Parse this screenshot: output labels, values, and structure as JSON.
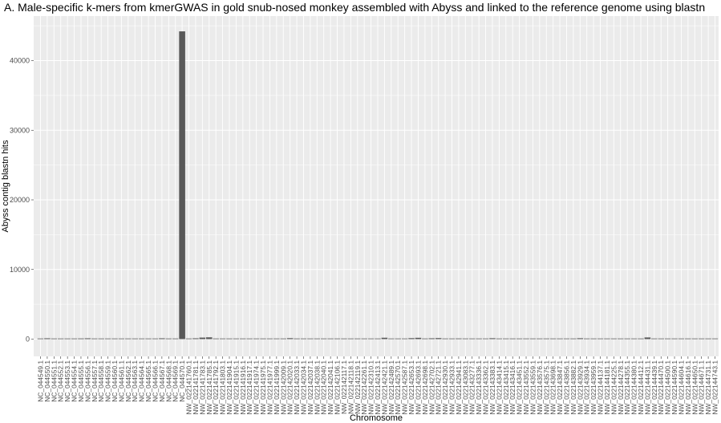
{
  "chart_data": {
    "type": "bar",
    "title": "A. Male-specific k-mers from kmerGWAS in gold snub-nosed monkey assembled with Abyss and linked to the reference genome using blastn",
    "xlabel": "Chromosome",
    "ylabel": "Abyss contig blastn hits",
    "ylim": [
      0,
      45500
    ],
    "yticks": [
      0,
      10000,
      20000,
      30000,
      40000
    ],
    "grid": true,
    "colors": {
      "panel": "#ebebeb",
      "grid": "#ffffff",
      "bar": "#595959",
      "tick_text": "#4d4d4d"
    },
    "categories": [
      "NC_044549.1",
      "NC_044550.1",
      "NC_044551.1",
      "NC_044552.1",
      "NC_044553.1",
      "NC_044554.1",
      "NC_044555.1",
      "NC_044556.1",
      "NC_044557.1",
      "NC_044558.1",
      "NC_044559.1",
      "NC_044560.1",
      "NC_044561.1",
      "NC_044562.1",
      "NC_044563.1",
      "NC_044564.1",
      "NC_044565.1",
      "NC_044566.1",
      "NC_044567.1",
      "NC_044568.1",
      "NC_044569.1",
      "NC_044570.1",
      "NW_022141760.1",
      "NW_022141781.1",
      "NW_022141783.1",
      "NW_022141785.1",
      "NW_022141792.1",
      "NW_022141803.1",
      "NW_022141904.1",
      "NW_022141915.1",
      "NW_022141916.1",
      "NW_022141917.1",
      "NW_022141974.1",
      "NW_022141975.1",
      "NW_022141977.1",
      "NW_022141999.1",
      "NW_022142009.1",
      "NW_022142020.1",
      "NW_022142033.1",
      "NW_022142034.1",
      "NW_022142037.1",
      "NW_022142038.1",
      "NW_022142040.1",
      "NW_022142041.1",
      "NW_022142106.1",
      "NW_022142117.1",
      "NW_022142118.1",
      "NW_022142119.1",
      "NW_022142261.1",
      "NW_022142310.1",
      "NW_022142413.1",
      "NW_022142421.1",
      "NW_022142489.1",
      "NW_022142570.1",
      "NW_022142587.1",
      "NW_022142653.1",
      "NW_022142693.1",
      "NW_022142698.1",
      "NW_022142702.1",
      "NW_022142721.1",
      "NW_022142930.1",
      "NW_022142933.1",
      "NW_022142941.1",
      "NW_022143083.1",
      "NW_022143277.1",
      "NW_022143336.1",
      "NW_022143362.1",
      "NW_022143383.1",
      "NW_022143414.1",
      "NW_022143415.1",
      "NW_022143416.1",
      "NW_022143451.1",
      "NW_022143552.1",
      "NW_022143559.1",
      "NW_022143576.1",
      "NW_022143575.1",
      "NW_022143698.1",
      "NW_022143847.1",
      "NW_022143856.1",
      "NW_022143882.1",
      "NW_022143929.1",
      "NW_022143934.1",
      "NW_022143959.1",
      "NW_022144137.1",
      "NW_022144181.1",
      "NW_022144225.1",
      "NW_022144278.1",
      "NW_022144355.1",
      "NW_022144380.1",
      "NW_022144412.1",
      "NW_022144431.1",
      "NW_022144439.1",
      "NW_022144470.1",
      "NW_022144500.1",
      "NW_022144590.1",
      "NW_022144604.1",
      "NW_022144616.1",
      "NW_022144650.1",
      "NW_022144671.1",
      "NW_022144731.1",
      "NW_022144743.1"
    ],
    "values": [
      30,
      120,
      15,
      10,
      10,
      30,
      100,
      120,
      20,
      10,
      10,
      15,
      10,
      10,
      10,
      10,
      10,
      20,
      120,
      20,
      10,
      44200,
      40,
      120,
      220,
      260,
      20,
      10,
      10,
      10,
      10,
      10,
      10,
      10,
      10,
      10,
      20,
      140,
      10,
      10,
      10,
      10,
      60,
      10,
      10,
      10,
      30,
      10,
      10,
      10,
      20,
      200,
      10,
      10,
      10,
      140,
      190,
      10,
      120,
      150,
      10,
      10,
      100,
      50,
      10,
      10,
      10,
      130,
      10,
      10,
      10,
      20,
      10,
      10,
      40,
      10,
      10,
      10,
      90,
      10,
      130,
      10,
      10,
      60,
      10,
      10,
      60,
      10,
      10,
      10,
      240,
      10,
      10,
      10,
      10,
      10,
      10,
      10,
      10,
      10,
      10
    ]
  }
}
